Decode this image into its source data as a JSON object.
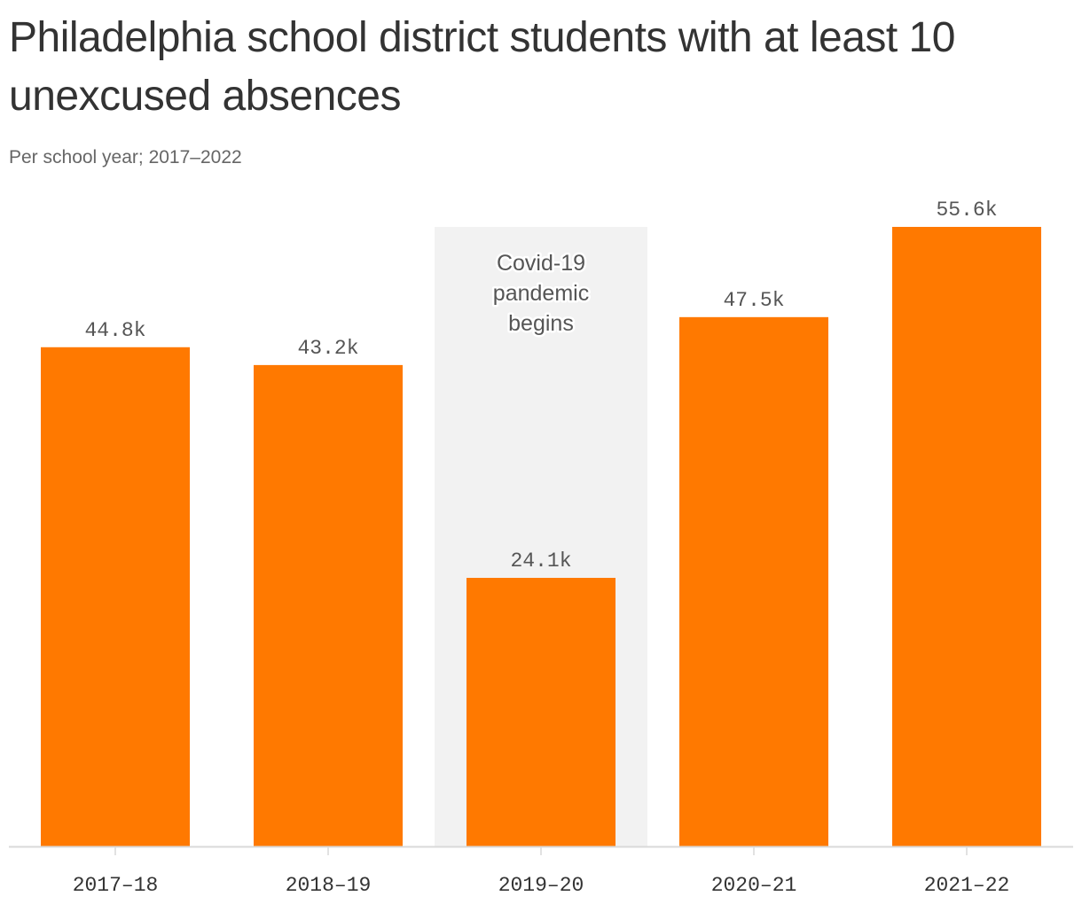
{
  "title": "Philadelphia school district students with at least 10 unexcused absences",
  "subtitle": "Per school year; 2017–2022",
  "colors": {
    "bar": "#ff7900",
    "highlight": "#f2f2f2",
    "axis": "#d9d9d9"
  },
  "chart_data": {
    "type": "bar",
    "title": "Philadelphia school district students with at least 10 unexcused absences",
    "subtitle": "Per school year; 2017–2022",
    "categories": [
      "2017–18",
      "2018–19",
      "2019–20",
      "2020–21",
      "2021–22"
    ],
    "values": [
      44800,
      43200,
      24100,
      47500,
      55600
    ],
    "value_labels": [
      "44.8k",
      "43.2k",
      "24.1k",
      "47.5k",
      "55.6k"
    ],
    "xlabel": "",
    "ylabel": "",
    "ylim": [
      0,
      55600
    ],
    "grid": false,
    "annotation": {
      "category": "2019–20",
      "lines": [
        "Covid-19",
        "pandemic",
        "begins"
      ]
    }
  }
}
